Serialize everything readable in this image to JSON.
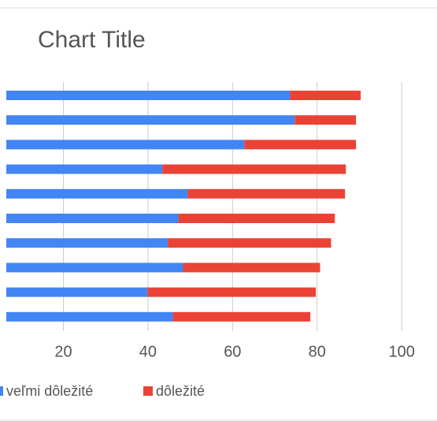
{
  "chart_data": {
    "type": "stacked_bar",
    "orientation": "horizontal",
    "title": "Chart Title",
    "categories": [
      null,
      null,
      null,
      null,
      null,
      null,
      null,
      null,
      null,
      null
    ],
    "series": [
      {
        "name": "veľmi dôležité",
        "color": "#4285f4",
        "values": [
          73.6,
          74.7,
          62.8,
          43.4,
          49.4,
          47.2,
          44.7,
          48.3,
          39.9,
          45.9
        ]
      },
      {
        "name": "dôležité",
        "color": "#ea4335",
        "values": [
          16.7,
          14.5,
          26.4,
          43.4,
          37.2,
          37.0,
          38.6,
          32.4,
          39.8,
          32.5
        ]
      }
    ],
    "xlim": [
      6.5,
      105
    ],
    "xticks": [
      20,
      40,
      60,
      80,
      100
    ],
    "grid": true,
    "legend": "bottom"
  }
}
